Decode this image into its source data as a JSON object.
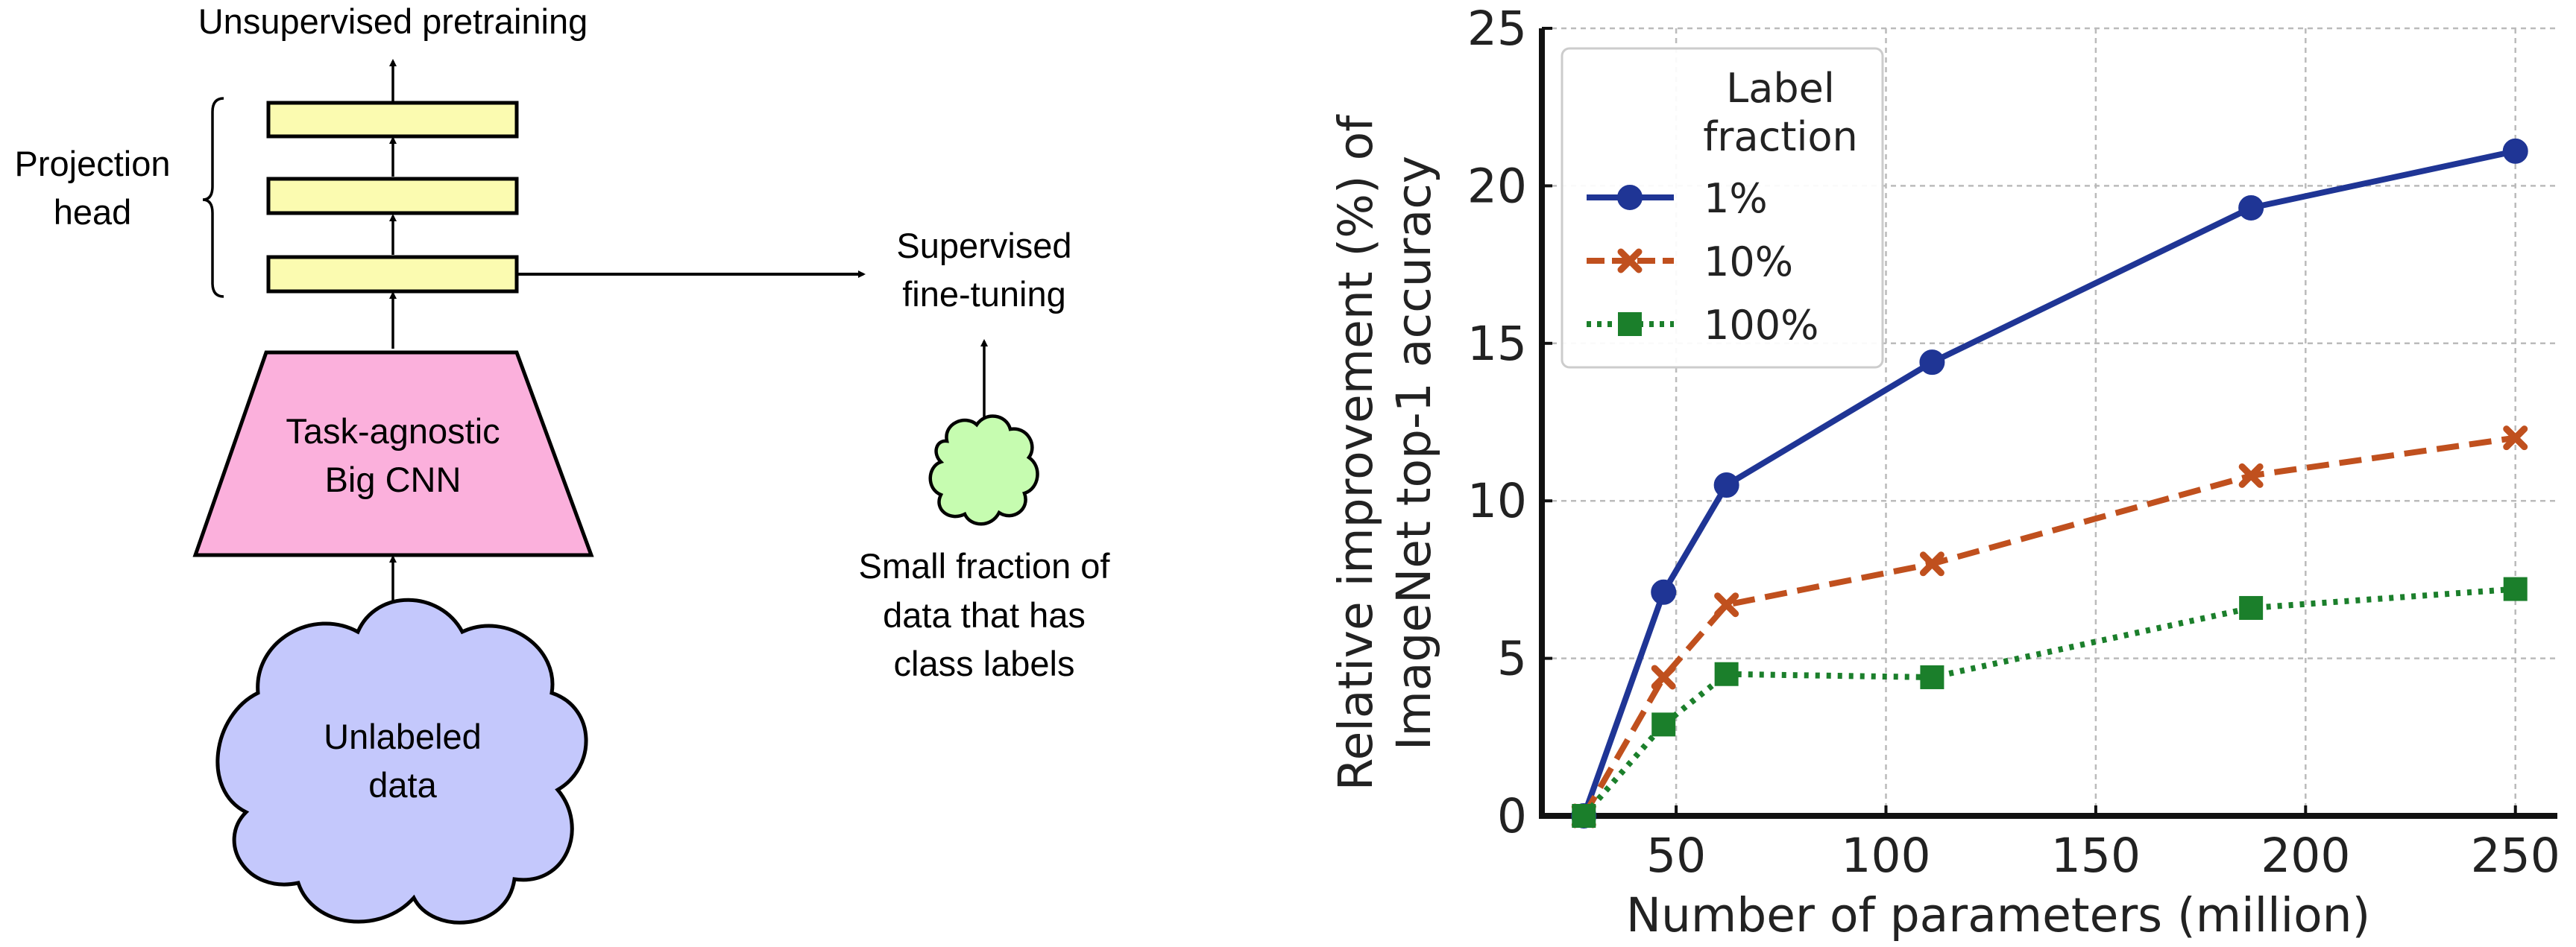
{
  "diagram": {
    "top_label": "Unsupervised pretraining",
    "projection_head_label": [
      "Projection",
      "head"
    ],
    "cnn_label": [
      "Task-agnostic",
      "Big CNN"
    ],
    "unlabeled_label": [
      "Unlabeled",
      "data"
    ],
    "finetune_label": [
      "Supervised",
      "fine-tuning"
    ],
    "small_fraction_label": [
      "Small fraction of",
      "data that has",
      "class labels"
    ],
    "colors": {
      "projection_block": "#fbfbb0",
      "cnn": "#fbb0dc",
      "unlabeled_cloud": "#c4c8fc",
      "labeled_cloud": "#c6fcb0"
    }
  },
  "chart_data": {
    "type": "line",
    "x": [
      28,
      47,
      62,
      111,
      187,
      250
    ],
    "series": [
      {
        "name": "1%",
        "values": [
          0,
          7.1,
          10.5,
          14.4,
          19.3,
          21.1
        ],
        "color": "#1f3595",
        "marker": "circle",
        "dash": "solid"
      },
      {
        "name": "10%",
        "values": [
          0,
          4.4,
          6.7,
          8.0,
          10.8,
          12.0
        ],
        "color": "#c0501e",
        "marker": "x",
        "dash": "dashed"
      },
      {
        "name": "100%",
        "values": [
          0,
          2.9,
          4.5,
          4.4,
          6.6,
          7.2
        ],
        "color": "#1b7f2b",
        "marker": "square",
        "dash": "dotted"
      }
    ],
    "xlabel": "Number of parameters (million)",
    "ylabel": [
      "Relative improvement (%) of",
      "ImageNet top-1 accuracy"
    ],
    "xlim": [
      18,
      260
    ],
    "ylim": [
      0,
      25
    ],
    "xticks": [
      50,
      100,
      150,
      200,
      250
    ],
    "yticks": [
      0,
      5,
      10,
      15,
      20,
      25
    ],
    "legend_title": [
      "Label",
      "fraction"
    ],
    "legend_placement": "top-left",
    "grid": true
  }
}
